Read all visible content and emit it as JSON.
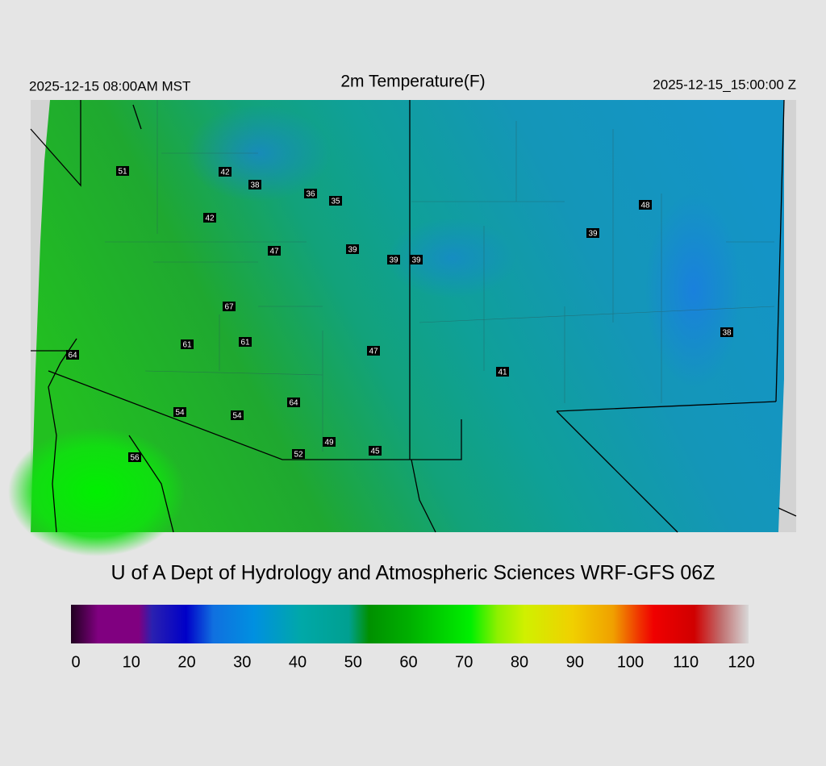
{
  "header": {
    "left": "2025-12-15 08:00AM MST",
    "title": "2m Temperature(F)",
    "right": "2025-12-15_15:00:00 Z"
  },
  "stations": [
    51,
    42,
    38,
    36,
    35,
    42,
    47,
    39,
    39,
    39,
    48,
    39,
    67,
    61,
    61,
    64,
    47,
    41,
    38,
    54,
    54,
    64,
    49,
    45,
    52,
    56
  ],
  "footer": "U of A Dept of Hydrology and Atmospheric Sciences WRF-GFS 06Z",
  "colorbar": {
    "range": [
      0,
      120
    ],
    "ticks": [
      0,
      10,
      20,
      30,
      40,
      50,
      60,
      70,
      80,
      90,
      100,
      110,
      120
    ]
  }
}
